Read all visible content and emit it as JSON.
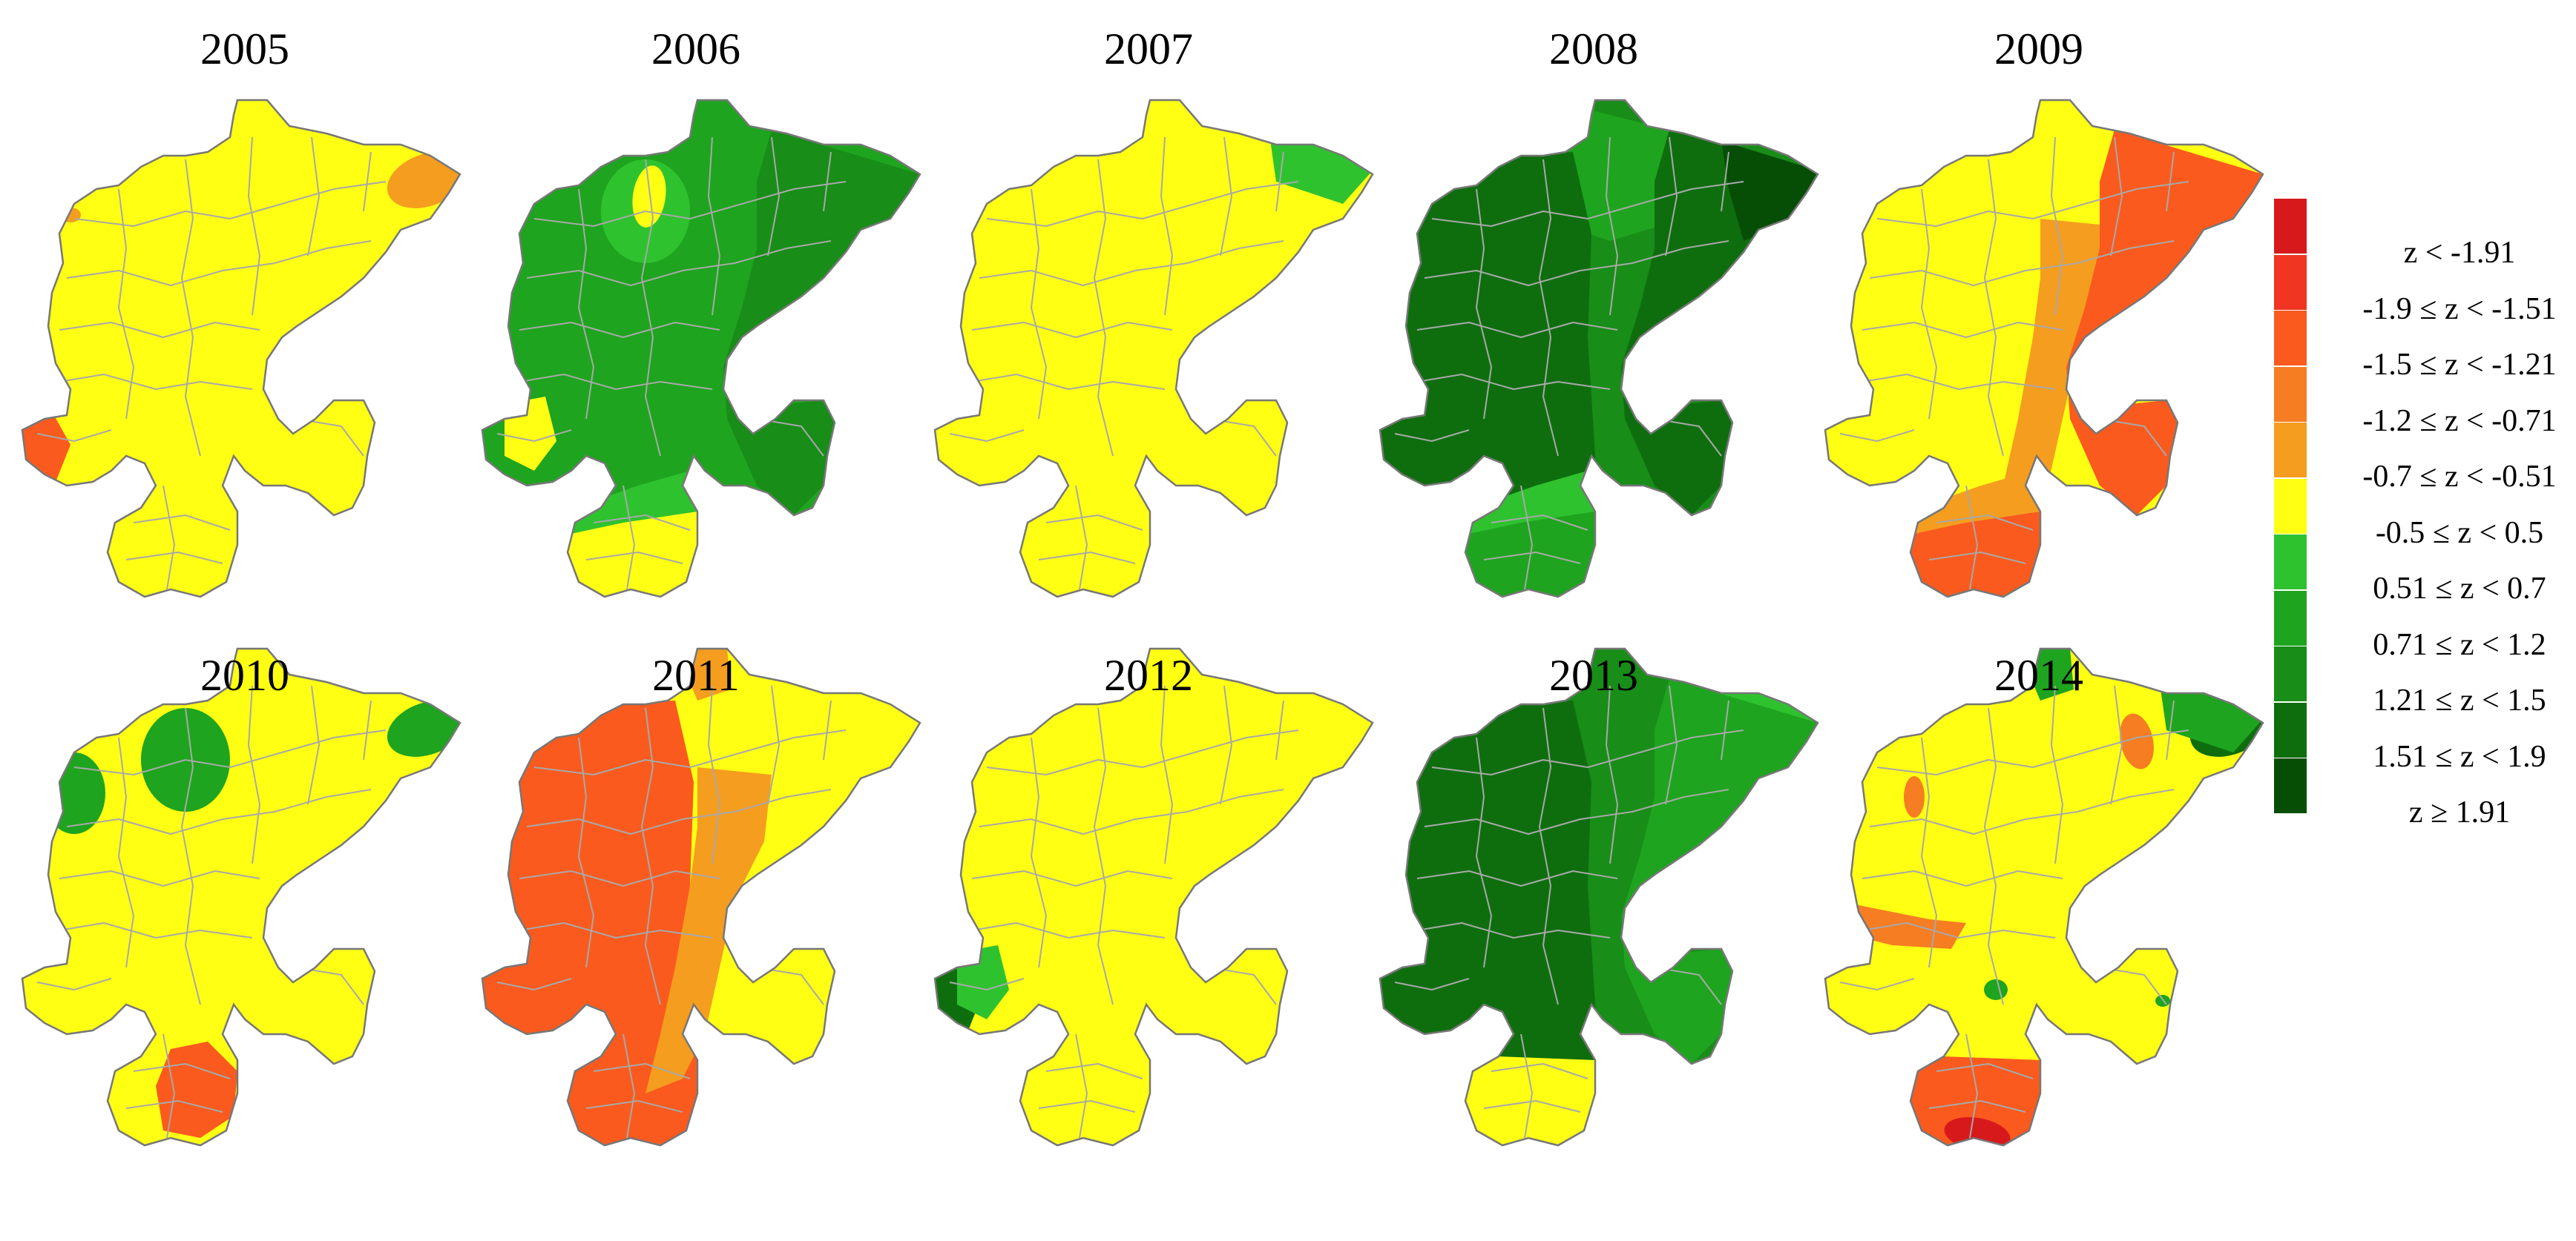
{
  "colors": {
    "red_dark": "#d7191c",
    "red": "#f03523",
    "orange_red": "#fa5a1e",
    "orange": "#f67d22",
    "light_orange": "#f59d1f",
    "yellow": "#ffff14",
    "light_green": "#2fc22f",
    "green": "#1ea41e",
    "mid_green": "#188d18",
    "dark_green": "#0e6e0e",
    "darkest_green": "#064e06",
    "boundary": "#a8a8a8"
  },
  "legend": [
    {
      "label": "z < -1.91",
      "color": "#d7191c"
    },
    {
      "label": "-1.9 ≤ z < -1.51",
      "color": "#f03523"
    },
    {
      "label": "-1.5 ≤ z < -1.21",
      "color": "#fa5a1e"
    },
    {
      "label": "-1.2 ≤ z < -0.71",
      "color": "#f67d22"
    },
    {
      "label": "-0.7 ≤ z < -0.51",
      "color": "#f59d1f"
    },
    {
      "label": "-0.5 ≤ z < 0.5",
      "color": "#ffff14"
    },
    {
      "label": "0.51 ≤ z < 0.7",
      "color": "#2fc22f"
    },
    {
      "label": "0.71 ≤ z < 1.2",
      "color": "#1ea41e"
    },
    {
      "label": "1.21 ≤ z < 1.5",
      "color": "#188d18"
    },
    {
      "label": "1.51 ≤ z < 1.9",
      "color": "#0e6e0e"
    },
    {
      "label": "z ≥ 1.91",
      "color": "#064e06"
    }
  ],
  "maps": [
    {
      "year": "2005",
      "base": "yellow",
      "patches": [
        {
          "shape": "ne",
          "color": "light_orange"
        },
        {
          "shape": "sw_tip",
          "color": "orange_red"
        },
        {
          "shape": "dot_nw",
          "color": "light_orange"
        }
      ]
    },
    {
      "year": "2006",
      "base": "green",
      "patches": [
        {
          "shape": "east_band",
          "color": "mid_green"
        },
        {
          "shape": "center_north",
          "color": "light_green"
        },
        {
          "shape": "center_spots",
          "color": "yellow"
        },
        {
          "shape": "south_low",
          "color": "yellow"
        },
        {
          "shape": "sw_mid",
          "color": "yellow"
        },
        {
          "shape": "south_strip",
          "color": "light_green"
        }
      ]
    },
    {
      "year": "2007",
      "base": "yellow",
      "patches": [
        {
          "shape": "ne_top",
          "color": "light_green"
        }
      ]
    },
    {
      "year": "2008",
      "base": "mid_green",
      "patches": [
        {
          "shape": "north_center",
          "color": "green"
        },
        {
          "shape": "east_band",
          "color": "dark_green"
        },
        {
          "shape": "ne_corner",
          "color": "darkest_green"
        },
        {
          "shape": "west_half",
          "color": "dark_green"
        },
        {
          "shape": "south_low",
          "color": "green"
        },
        {
          "shape": "south_strip",
          "color": "light_green"
        }
      ]
    },
    {
      "year": "2009",
      "base": "yellow",
      "patches": [
        {
          "shape": "diag_band",
          "color": "light_orange"
        },
        {
          "shape": "east_band",
          "color": "orange_red"
        },
        {
          "shape": "south_low",
          "color": "orange_red"
        },
        {
          "shape": "south_strip",
          "color": "light_orange"
        }
      ]
    },
    {
      "year": "2010",
      "base": "yellow",
      "patches": [
        {
          "shape": "west_blob",
          "color": "green"
        },
        {
          "shape": "center_north",
          "color": "green"
        },
        {
          "shape": "ne",
          "color": "green"
        },
        {
          "shape": "south_tail",
          "color": "orange_red"
        }
      ]
    },
    {
      "year": "2011",
      "base": "yellow",
      "patches": [
        {
          "shape": "west_half",
          "color": "orange_red"
        },
        {
          "shape": "south_low",
          "color": "orange_red"
        },
        {
          "shape": "diag_band",
          "color": "light_orange"
        },
        {
          "shape": "north_tip",
          "color": "light_orange"
        }
      ]
    },
    {
      "year": "2012",
      "base": "yellow",
      "patches": [
        {
          "shape": "sw_tip",
          "color": "dark_green"
        },
        {
          "shape": "sw_mid",
          "color": "light_green"
        },
        {
          "shape": "dot_s",
          "color": "light_green"
        }
      ]
    },
    {
      "year": "2013",
      "base": "mid_green",
      "patches": [
        {
          "shape": "west_half",
          "color": "dark_green"
        },
        {
          "shape": "ne_top",
          "color": "light_green"
        },
        {
          "shape": "east_band",
          "color": "green"
        },
        {
          "shape": "south_low",
          "color": "yellow"
        }
      ]
    },
    {
      "year": "2014",
      "base": "yellow",
      "patches": [
        {
          "shape": "ne",
          "color": "dark_green"
        },
        {
          "shape": "ne_top",
          "color": "green"
        },
        {
          "shape": "north_tip",
          "color": "green"
        },
        {
          "shape": "hot_nw",
          "color": "orange"
        },
        {
          "shape": "hot_ne",
          "color": "orange"
        },
        {
          "shape": "west_band",
          "color": "orange"
        },
        {
          "shape": "south_low",
          "color": "orange_red"
        },
        {
          "shape": "south_core",
          "color": "red_dark"
        },
        {
          "shape": "dot_c",
          "color": "green"
        },
        {
          "shape": "dot_e",
          "color": "green"
        }
      ]
    }
  ]
}
